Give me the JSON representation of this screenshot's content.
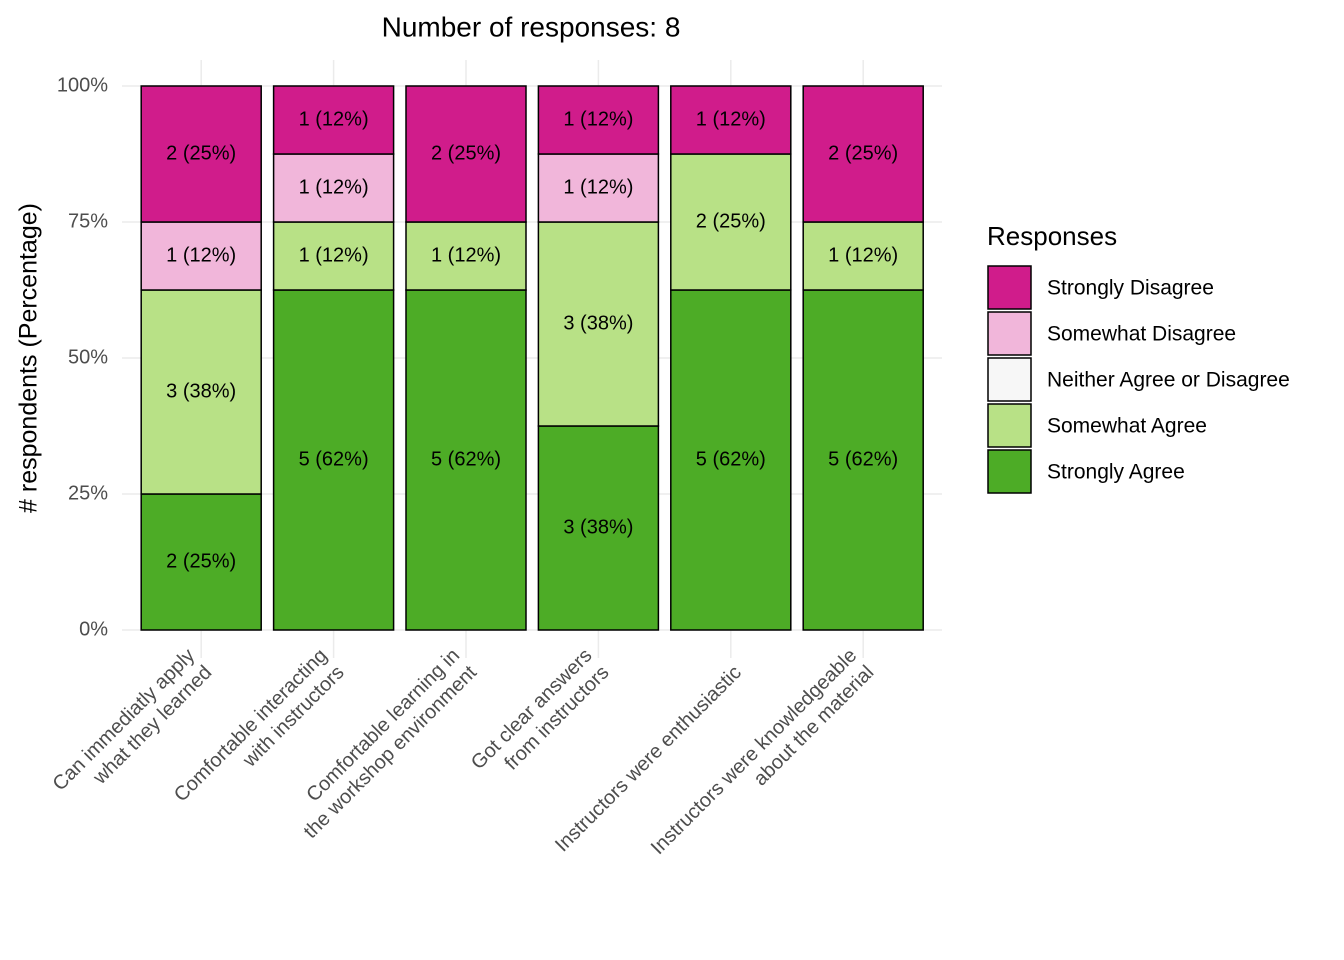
{
  "chart_data": {
    "type": "stacked_bar",
    "title": "Number of responses: 8",
    "y_label": "# respondents (Percentage)",
    "legend_title": "Responses",
    "legend_position": "right",
    "grid": true,
    "categories": [
      "Can immediatly apply\nwhat they learned",
      "Comfortable interacting\nwith instructors",
      "Comfortable learning in\nthe workshop environment",
      "Got clear answers\nfrom instructors",
      "Instructors were enthusiastic",
      "Instructors were knowledgeable\nabout the material"
    ],
    "ylim": [
      0,
      100
    ],
    "yticks": [
      {
        "value": 0,
        "label": "0%"
      },
      {
        "value": 25,
        "label": "25%"
      },
      {
        "value": 50,
        "label": "50%"
      },
      {
        "value": 75,
        "label": "75%"
      },
      {
        "value": 100,
        "label": "100%"
      }
    ],
    "series": [
      {
        "name": "Strongly Agree",
        "color": "#4dac26",
        "values": [
          25,
          62.5,
          62.5,
          37.5,
          62.5,
          62.5
        ],
        "value_labels": [
          "2 (25%)",
          "5 (62%)",
          "5 (62%)",
          "3 (38%)",
          "5 (62%)",
          "5 (62%)"
        ]
      },
      {
        "name": "Somewhat Agree",
        "color": "#b8e186",
        "values": [
          37.5,
          12.5,
          12.5,
          37.5,
          25,
          12.5
        ],
        "value_labels": [
          "3 (38%)",
          "1 (12%)",
          "1 (12%)",
          "3 (38%)",
          "2 (25%)",
          "1 (12%)"
        ]
      },
      {
        "name": "Neither Agree or Disagree",
        "color": "#f7f7f7",
        "values": [
          0,
          0,
          0,
          0,
          0,
          0
        ],
        "value_labels": [
          null,
          null,
          null,
          null,
          null,
          null
        ]
      },
      {
        "name": "Somewhat Disagree",
        "color": "#f1b6da",
        "values": [
          12.5,
          12.5,
          0,
          12.5,
          0,
          0
        ],
        "value_labels": [
          "1 (12%)",
          "1 (12%)",
          null,
          "1 (12%)",
          null,
          null
        ]
      },
      {
        "name": "Strongly Disagree",
        "color": "#d01c8b",
        "values": [
          25,
          12.5,
          25,
          12.5,
          12.5,
          25
        ],
        "value_labels": [
          "2 (25%)",
          "1 (12%)",
          "2 (25%)",
          "1 (12%)",
          "1 (12%)",
          "2 (25%)"
        ]
      }
    ]
  }
}
